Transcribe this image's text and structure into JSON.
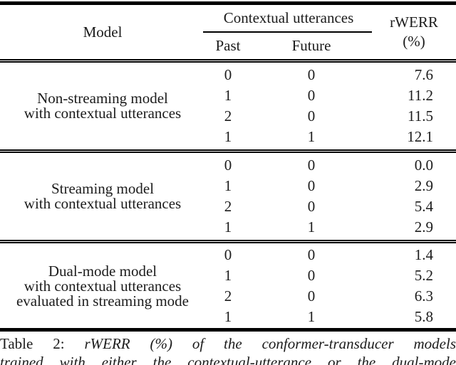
{
  "table": {
    "header": {
      "model": "Model",
      "group": "Contextual utterances",
      "past": "Past",
      "future": "Future",
      "rwerr_line1": "rWERR",
      "rwerr_line2": "(%)"
    },
    "sections": [
      {
        "model_lines": [
          "Non-streaming model",
          "with contextual utterances"
        ],
        "rows": [
          {
            "past": "0",
            "future": "0",
            "rwerr": "7.6"
          },
          {
            "past": "1",
            "future": "0",
            "rwerr": "11.2"
          },
          {
            "past": "2",
            "future": "0",
            "rwerr": "11.5"
          },
          {
            "past": "1",
            "future": "1",
            "rwerr": "12.1"
          }
        ]
      },
      {
        "model_lines": [
          "Streaming model",
          "with contextual utterances"
        ],
        "rows": [
          {
            "past": "0",
            "future": "0",
            "rwerr": "0.0"
          },
          {
            "past": "1",
            "future": "0",
            "rwerr": "2.9"
          },
          {
            "past": "2",
            "future": "0",
            "rwerr": "5.4"
          },
          {
            "past": "1",
            "future": "1",
            "rwerr": "2.9"
          }
        ]
      },
      {
        "model_lines": [
          "Dual-mode model",
          "with contextual utterances",
          "evaluated in streaming mode"
        ],
        "rows": [
          {
            "past": "0",
            "future": "0",
            "rwerr": "1.4"
          },
          {
            "past": "1",
            "future": "0",
            "rwerr": "5.2"
          },
          {
            "past": "2",
            "future": "0",
            "rwerr": "6.3"
          },
          {
            "past": "1",
            "future": "1",
            "rwerr": "5.8"
          }
        ]
      }
    ]
  },
  "caption": {
    "label": "Table 2:",
    "line1": "rWERR (%) of the conformer-transducer models",
    "line2": "trained with either the contextual-utterance or the dual-mode"
  },
  "colors": {
    "background": "#ffffff",
    "text": "#1c1c1c",
    "rule": "#000000"
  }
}
